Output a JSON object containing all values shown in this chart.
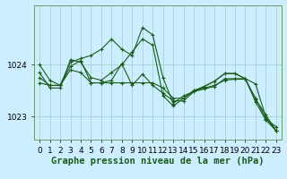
{
  "background_color": "#cceeff",
  "line_color": "#1a5c1a",
  "marker": "+",
  "marker_size": 3,
  "marker_linewidth": 0.8,
  "xlabel": "Graphe pression niveau de la mer (hPa)",
  "xlabel_fontsize": 7.5,
  "ytick_labels": [
    "1023",
    "1024"
  ],
  "yticks": [
    1023,
    1024
  ],
  "ylim": [
    1022.55,
    1025.15
  ],
  "xlim": [
    -0.5,
    23.5
  ],
  "grid_color": "#99cccc",
  "grid_linewidth": 0.5,
  "line_linewidth": 0.8,
  "tick_fontsize": 6.5,
  "series": [
    [
      1023.75,
      1023.6,
      1023.6,
      1023.9,
      1023.85,
      1023.65,
      1023.65,
      1023.65,
      1023.65,
      1023.65,
      1023.65,
      1023.65,
      1023.55,
      1023.35,
      1023.35,
      1023.5,
      1023.55,
      1023.6,
      1023.7,
      1023.72,
      1023.72,
      1023.35,
      1022.95,
      1022.8
    ],
    [
      1023.85,
      1023.55,
      1023.55,
      1024.1,
      1024.05,
      1023.75,
      1023.7,
      1023.85,
      1024.0,
      1024.25,
      1024.5,
      1024.38,
      1023.4,
      1023.2,
      1023.35,
      1023.5,
      1023.58,
      1023.68,
      1023.83,
      1023.83,
      1023.73,
      1023.63,
      1022.98,
      1022.72
    ],
    [
      1024.0,
      1023.7,
      1023.6,
      1024.05,
      1024.12,
      1024.18,
      1024.3,
      1024.5,
      1024.3,
      1024.18,
      1024.72,
      1024.58,
      1023.75,
      1023.25,
      1023.4,
      1023.48,
      1023.58,
      1023.68,
      1023.83,
      1023.83,
      1023.73,
      1023.33,
      1023.03,
      1022.72
    ],
    [
      1023.65,
      1023.6,
      1023.6,
      1023.97,
      1024.08,
      1023.65,
      1023.65,
      1023.7,
      1024.02,
      1023.6,
      1023.82,
      1023.6,
      1023.45,
      1023.3,
      1023.3,
      1023.48,
      1023.53,
      1023.58,
      1023.73,
      1023.73,
      1023.73,
      1023.28,
      1022.93,
      1022.72
    ]
  ]
}
